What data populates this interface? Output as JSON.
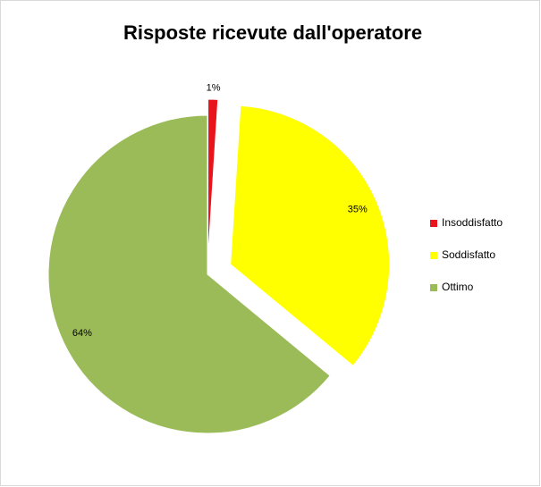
{
  "chart_data": {
    "type": "pie",
    "title": "Risposte ricevute dall'operatore",
    "categories": [
      "Insoddisfatto",
      "Soddisfatto",
      "Ottimo"
    ],
    "values": [
      1,
      35,
      64
    ],
    "value_labels": [
      "1%",
      "35%",
      "64%"
    ],
    "colors": [
      "#e8141b",
      "#ffff00",
      "#9bbb59"
    ],
    "legend": "right"
  }
}
